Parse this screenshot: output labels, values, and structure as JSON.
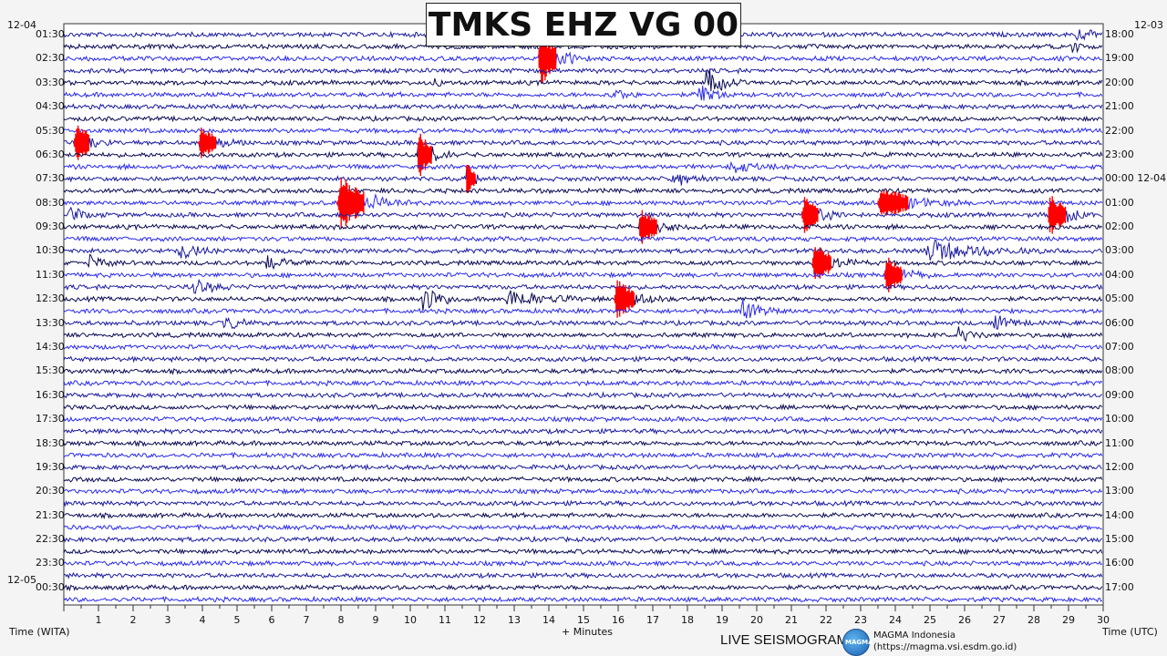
{
  "header": {
    "title": "TMKS EHZ VG 00"
  },
  "left_date_top": "12-04",
  "left_date_bottom": "12-05",
  "right_date_top": "12-03",
  "x_axis": {
    "left_caption": "Time (WITA)",
    "center_caption": "+ Minutes",
    "right_caption": "Time (UTC)",
    "ticks": [
      "1",
      "2",
      "3",
      "4",
      "5",
      "6",
      "7",
      "8",
      "9",
      "10",
      "11",
      "12",
      "13",
      "14",
      "15",
      "16",
      "17",
      "18",
      "19",
      "20",
      "21",
      "22",
      "23",
      "24",
      "25",
      "26",
      "27",
      "28",
      "29",
      "30"
    ]
  },
  "footer": {
    "label": "LIVE SEISMOGRAM",
    "logo_text": "MAGMA",
    "org_name": "MAGMA Indonesia",
    "org_url": "(https://magma.vsi.esdm.go.id)"
  },
  "chart_data": {
    "type": "line",
    "title": "TMKS EHZ VG 00",
    "xlabel": "+ Minutes",
    "xlim": [
      0,
      30
    ],
    "left_time_labels": [
      "01:30",
      "02:30",
      "03:30",
      "04:30",
      "05:30",
      "06:30",
      "07:30",
      "08:30",
      "09:30",
      "10:30",
      "11:30",
      "12:30",
      "13:30",
      "14:30",
      "15:30",
      "16:30",
      "17:30",
      "18:30",
      "19:30",
      "20:30",
      "21:30",
      "22:30",
      "23:30",
      "00:30"
    ],
    "right_time_labels": [
      "18:00",
      "19:00",
      "20:00",
      "21:00",
      "22:00",
      "23:00",
      "00:00 12-04",
      "01:00",
      "02:00",
      "03:00",
      "04:00",
      "05:00",
      "06:00",
      "07:00",
      "08:00",
      "09:00",
      "10:00",
      "11:00",
      "12:00",
      "13:00",
      "14:00",
      "15:00",
      "16:00",
      "17:00"
    ],
    "trace_count": 48,
    "trace_colors": [
      "#1a1aa0",
      "#0b0b55",
      "#2a2af0"
    ],
    "clip_color": "#ff0000",
    "events": [
      {
        "trace": 0,
        "minute": 29.2,
        "amp": 0.7,
        "dur": 1.2
      },
      {
        "trace": 1,
        "minute": 29.1,
        "amp": 0.8,
        "dur": 0.6
      },
      {
        "trace": 2,
        "minute": 13.7,
        "amp": 2.6,
        "dur": 1.5,
        "clip": true
      },
      {
        "trace": 4,
        "minute": 18.5,
        "amp": 1.6,
        "dur": 1.2
      },
      {
        "trace": 5,
        "minute": 18.3,
        "amp": 1.3,
        "dur": 1.0
      },
      {
        "trace": 5,
        "minute": 15.8,
        "amp": 0.6,
        "dur": 1.0
      },
      {
        "trace": 4,
        "minute": 10.7,
        "amp": 0.8,
        "dur": 0.4
      },
      {
        "trace": 9,
        "minute": 0.3,
        "amp": 2.0,
        "dur": 1.2,
        "clip": true
      },
      {
        "trace": 9,
        "minute": 3.9,
        "amp": 1.4,
        "dur": 1.4,
        "clip": true
      },
      {
        "trace": 10,
        "minute": 10.2,
        "amp": 2.0,
        "dur": 1.2,
        "clip": true
      },
      {
        "trace": 12,
        "minute": 11.6,
        "amp": 1.4,
        "dur": 0.8,
        "clip": true
      },
      {
        "trace": 12,
        "minute": 17.5,
        "amp": 1.2,
        "dur": 1.2
      },
      {
        "trace": 11,
        "minute": 19.2,
        "amp": 0.8,
        "dur": 1.5
      },
      {
        "trace": 14,
        "minute": 7.9,
        "amp": 2.4,
        "dur": 2.2,
        "clip": true
      },
      {
        "trace": 15,
        "minute": 0.1,
        "amp": 1.0,
        "dur": 1.0
      },
      {
        "trace": 15,
        "minute": 21.3,
        "amp": 1.6,
        "dur": 1.4,
        "clip": true
      },
      {
        "trace": 14,
        "minute": 23.5,
        "amp": 1.4,
        "dur": 2.5,
        "clip": true
      },
      {
        "trace": 15,
        "minute": 28.4,
        "amp": 1.8,
        "dur": 1.5,
        "clip": true
      },
      {
        "trace": 16,
        "minute": 16.6,
        "amp": 1.6,
        "dur": 1.5,
        "clip": true
      },
      {
        "trace": 19,
        "minute": 21.6,
        "amp": 1.8,
        "dur": 1.6,
        "clip": true
      },
      {
        "trace": 18,
        "minute": 24.8,
        "amp": 1.4,
        "dur": 3.5
      },
      {
        "trace": 20,
        "minute": 23.7,
        "amp": 1.6,
        "dur": 1.4,
        "clip": true
      },
      {
        "trace": 18,
        "minute": 3.3,
        "amp": 1.2,
        "dur": 1.2
      },
      {
        "trace": 19,
        "minute": 0.7,
        "amp": 0.8,
        "dur": 1.0
      },
      {
        "trace": 19,
        "minute": 5.8,
        "amp": 0.8,
        "dur": 1.2
      },
      {
        "trace": 21,
        "minute": 3.7,
        "amp": 1.0,
        "dur": 1.2
      },
      {
        "trace": 22,
        "minute": 10.3,
        "amp": 1.6,
        "dur": 1.4
      },
      {
        "trace": 22,
        "minute": 12.7,
        "amp": 1.2,
        "dur": 2.5
      },
      {
        "trace": 22,
        "minute": 15.9,
        "amp": 1.8,
        "dur": 1.6,
        "clip": true
      },
      {
        "trace": 23,
        "minute": 19.5,
        "amp": 1.2,
        "dur": 1.5
      },
      {
        "trace": 24,
        "minute": 4.6,
        "amp": 0.9,
        "dur": 1.0
      },
      {
        "trace": 24,
        "minute": 26.8,
        "amp": 0.9,
        "dur": 1.4
      },
      {
        "trace": 25,
        "minute": 25.7,
        "amp": 1.0,
        "dur": 1.0
      }
    ]
  }
}
